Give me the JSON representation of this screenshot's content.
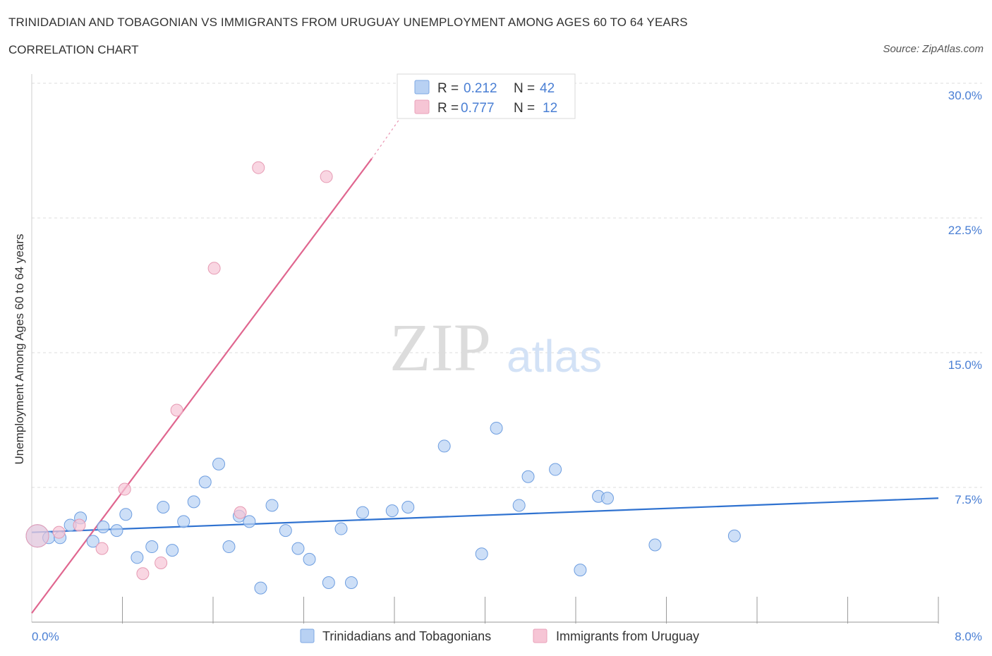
{
  "header": {
    "title": "TRINIDADIAN AND TOBAGONIAN VS IMMIGRANTS FROM URUGUAY UNEMPLOYMENT AMONG AGES 60 TO 64 YEARS",
    "subtitle": "CORRELATION CHART",
    "source": "Source: ZipAtlas.com"
  },
  "watermark": {
    "part1": "ZIP",
    "part2": "atlas"
  },
  "colors": {
    "blue": "#4a7fd4",
    "blue_fill": "#b8d1f3",
    "blue_line": "#2f72d0",
    "pink": "#e8799c",
    "pink_fill": "#f6c5d5",
    "pink_line": "#e0668f",
    "grid": "#dddddd"
  },
  "legend": {
    "rows": [
      {
        "r_label": "R =",
        "r_value": "0.212",
        "n_label": "N =",
        "n_value": "42"
      },
      {
        "r_label": "R =",
        "r_value": "0.777",
        "n_label": "N =",
        "n_value": "12"
      }
    ]
  },
  "chart_data": {
    "type": "scatter",
    "title": "TRINIDADIAN AND TOBAGONIAN VS IMMIGRANTS FROM URUGUAY UNEMPLOYMENT AMONG AGES 60 TO 64 YEARS",
    "xlabel": "",
    "ylabel": "Unemployment Among Ages 60 to 64 years",
    "xlim": [
      0,
      8
    ],
    "ylim": [
      0,
      30
    ],
    "x_tick_labels": [
      "0.0%",
      "8.0%"
    ],
    "y_ticks": [
      7.5,
      15.0,
      22.5,
      30.0
    ],
    "y_tick_labels": [
      "7.5%",
      "15.0%",
      "22.5%",
      "30.0%"
    ],
    "grid": true,
    "legend_position": "bottom-center",
    "series": [
      {
        "name": "Trinidadians and Tobagonians",
        "color": "#4a7fd4",
        "R": 0.212,
        "N": 42,
        "trend": {
          "x": [
            0.0,
            8.0
          ],
          "y": [
            5.0,
            6.9
          ]
        },
        "points": [
          {
            "x": 0.05,
            "y": 4.8,
            "big": true
          },
          {
            "x": 0.15,
            "y": 4.7
          },
          {
            "x": 0.25,
            "y": 4.7
          },
          {
            "x": 0.34,
            "y": 5.4
          },
          {
            "x": 0.43,
            "y": 5.8
          },
          {
            "x": 0.54,
            "y": 4.5
          },
          {
            "x": 0.63,
            "y": 5.3
          },
          {
            "x": 0.75,
            "y": 5.1
          },
          {
            "x": 0.83,
            "y": 6.0
          },
          {
            "x": 0.93,
            "y": 3.6
          },
          {
            "x": 1.06,
            "y": 4.2
          },
          {
            "x": 1.16,
            "y": 6.4
          },
          {
            "x": 1.24,
            "y": 4.0
          },
          {
            "x": 1.34,
            "y": 5.6
          },
          {
            "x": 1.43,
            "y": 6.7
          },
          {
            "x": 1.53,
            "y": 7.8
          },
          {
            "x": 1.65,
            "y": 8.8
          },
          {
            "x": 1.74,
            "y": 4.2
          },
          {
            "x": 1.83,
            "y": 5.9
          },
          {
            "x": 1.92,
            "y": 5.6
          },
          {
            "x": 2.02,
            "y": 1.9
          },
          {
            "x": 2.12,
            "y": 6.5
          },
          {
            "x": 2.24,
            "y": 5.1
          },
          {
            "x": 2.35,
            "y": 4.1
          },
          {
            "x": 2.45,
            "y": 3.5
          },
          {
            "x": 2.62,
            "y": 2.2
          },
          {
            "x": 2.73,
            "y": 5.2
          },
          {
            "x": 2.82,
            "y": 2.2
          },
          {
            "x": 2.92,
            "y": 6.1
          },
          {
            "x": 3.18,
            "y": 6.2
          },
          {
            "x": 3.32,
            "y": 6.4
          },
          {
            "x": 3.64,
            "y": 9.8
          },
          {
            "x": 3.97,
            "y": 3.8
          },
          {
            "x": 4.1,
            "y": 10.8
          },
          {
            "x": 4.3,
            "y": 6.5
          },
          {
            "x": 4.38,
            "y": 8.1
          },
          {
            "x": 4.62,
            "y": 8.5
          },
          {
            "x": 4.84,
            "y": 2.9
          },
          {
            "x": 5.0,
            "y": 7.0
          },
          {
            "x": 5.08,
            "y": 6.9
          },
          {
            "x": 5.5,
            "y": 4.3
          },
          {
            "x": 6.2,
            "y": 4.8
          }
        ]
      },
      {
        "name": "Immigrants from Uruguay",
        "color": "#e8799c",
        "R": 0.777,
        "N": 12,
        "trend": {
          "x": [
            0.0,
            3.0
          ],
          "y": [
            0.5,
            25.8
          ],
          "dashed_to": {
            "x": 3.3,
            "y": 28.5
          }
        },
        "points": [
          {
            "x": 0.05,
            "y": 4.8,
            "big": true
          },
          {
            "x": 0.24,
            "y": 5.0
          },
          {
            "x": 0.42,
            "y": 5.4
          },
          {
            "x": 0.62,
            "y": 4.1
          },
          {
            "x": 0.82,
            "y": 7.4
          },
          {
            "x": 0.98,
            "y": 2.7
          },
          {
            "x": 1.14,
            "y": 3.3
          },
          {
            "x": 1.28,
            "y": 11.8
          },
          {
            "x": 1.61,
            "y": 19.7
          },
          {
            "x": 1.84,
            "y": 6.1
          },
          {
            "x": 2.0,
            "y": 25.3
          },
          {
            "x": 2.6,
            "y": 24.8
          }
        ]
      }
    ]
  }
}
